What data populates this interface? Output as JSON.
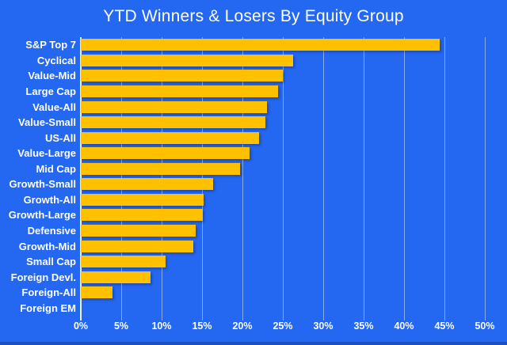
{
  "title": "YTD Winners & Losers By Equity Group",
  "colors": {
    "background": "#2467F1",
    "bar": "#FFC000",
    "text": "#FFFFFF",
    "gridline": "rgba(255,255,255,0.45)",
    "zero_axis": "rgba(255,255,255,0.95)"
  },
  "chart_data": {
    "type": "bar",
    "orientation": "horizontal",
    "title": "YTD Winners & Losers By Equity Group",
    "xlabel": "",
    "ylabel": "",
    "xlim": [
      0,
      50
    ],
    "grid": true,
    "xticks": [
      "0%",
      "5%",
      "10%",
      "15%",
      "20%",
      "25%",
      "30%",
      "35%",
      "40%",
      "45%",
      "50%"
    ],
    "categories": [
      "S&P Top 7",
      "Cyclical",
      "Value-Mid",
      "Large Cap",
      "Value-All",
      "Value-Small",
      "US-All",
      "Value-Large",
      "Mid Cap",
      "Growth-Small",
      "Growth-All",
      "Growth-Large",
      "Defensive",
      "Growth-Mid",
      "Small Cap",
      "Foreign Devl.",
      "Foreign-All",
      "Foreign EM"
    ],
    "values": [
      44.4,
      26.3,
      25.0,
      24.4,
      23.0,
      22.8,
      22.1,
      20.9,
      19.7,
      16.4,
      15.2,
      15.1,
      14.2,
      13.9,
      10.5,
      8.6,
      3.9,
      0
    ]
  }
}
